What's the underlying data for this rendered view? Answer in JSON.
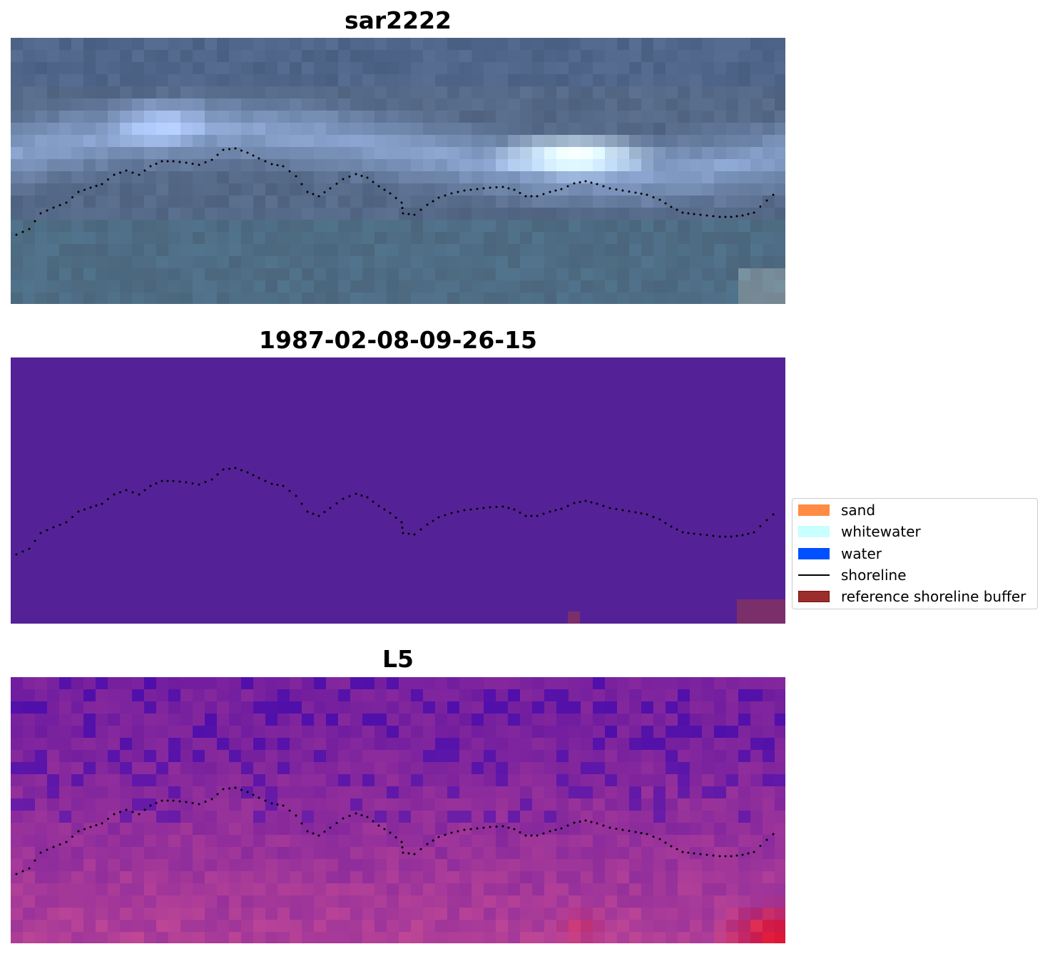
{
  "panels": [
    {
      "title": "sar2222",
      "kind": "rgb"
    },
    {
      "title": "1987-02-08-09-26-15",
      "kind": "classification"
    },
    {
      "title": "L5",
      "kind": "index"
    }
  ],
  "legend": {
    "items": [
      {
        "label": "sand",
        "color": "#ff8c42",
        "type": "patch"
      },
      {
        "label": "whitewater",
        "color": "#c8ffff",
        "type": "patch"
      },
      {
        "label": "water",
        "color": "#0050ff",
        "type": "patch"
      },
      {
        "label": "shoreline",
        "color": "#000000",
        "type": "line"
      },
      {
        "label": "reference shoreline buffer",
        "color": "#9b2d2d",
        "type": "patch"
      }
    ]
  },
  "colors": {
    "classification_background": "#542296",
    "buffer_overlay": "#7a2e6a",
    "shoreline_dots": "#000000"
  }
}
